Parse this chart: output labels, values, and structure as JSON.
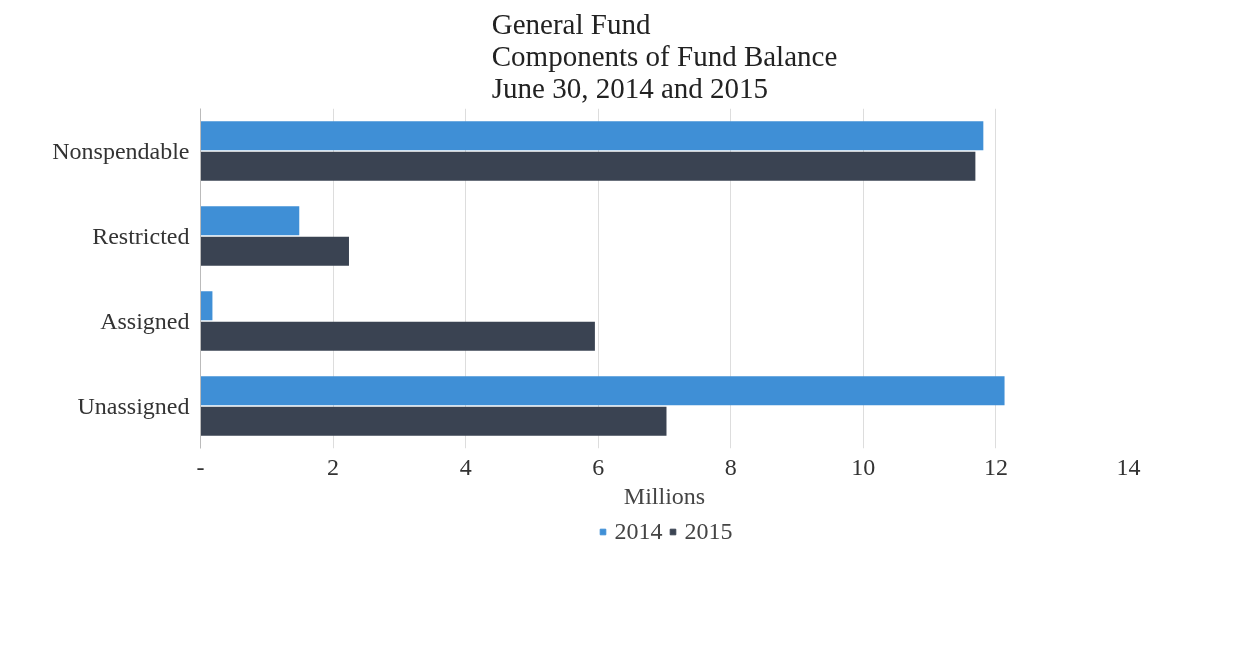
{
  "chart_data": {
    "type": "bar",
    "orientation": "horizontal",
    "title": "General Fund\nComponents of Fund Balance\nJune 30, 2014 and 2015",
    "xlabel": "Millions",
    "categories": [
      "Nonspendable",
      "Restricted",
      "Assigned",
      "Unassigned"
    ],
    "series": [
      {
        "name": "2014",
        "color": "#3f8fd6",
        "values": [
          11.81,
          1.49,
          0.18,
          12.13
        ]
      },
      {
        "name": "2015",
        "color": "#3a4352",
        "values": [
          11.69,
          2.24,
          5.95,
          7.03
        ]
      }
    ],
    "xlim": [
      0,
      14
    ],
    "xticks": [
      {
        "value": 0,
        "label": "-"
      },
      2,
      4,
      6,
      8,
      10,
      12,
      14
    ],
    "grid": "x",
    "legend": "bottom"
  }
}
